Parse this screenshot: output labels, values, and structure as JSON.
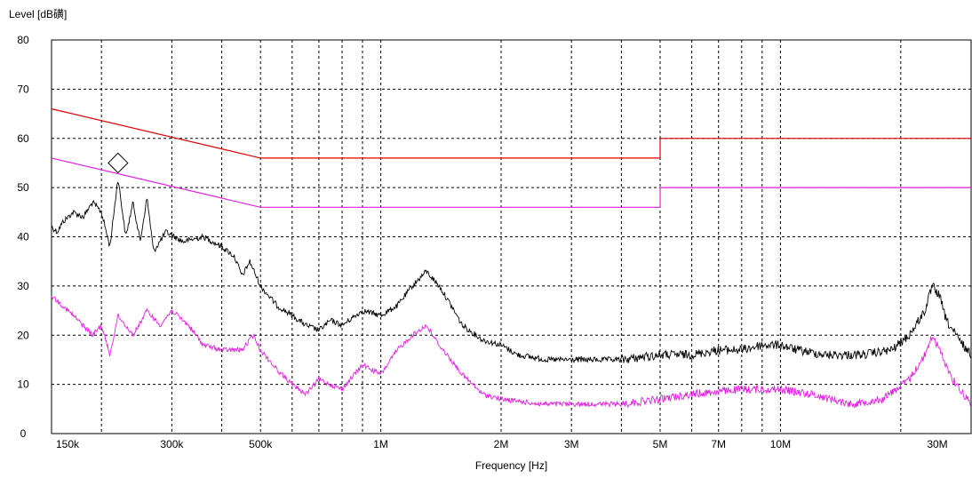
{
  "chart_data": {
    "type": "line",
    "title": "",
    "xlabel": "Frequency [Hz]",
    "ylabel": "Level [dB磺]",
    "x_scale": "log",
    "xlim": [
      150000,
      30000000
    ],
    "ylim": [
      0,
      80
    ],
    "grid": true,
    "legend": "none",
    "x_ticks": [
      {
        "value": 150000,
        "label": "150k"
      },
      {
        "value": 300000,
        "label": "300k"
      },
      {
        "value": 500000,
        "label": "500k"
      },
      {
        "value": 1000000,
        "label": "1M"
      },
      {
        "value": 2000000,
        "label": "2M"
      },
      {
        "value": 3000000,
        "label": "3M"
      },
      {
        "value": 5000000,
        "label": "5M"
      },
      {
        "value": 7000000,
        "label": "7M"
      },
      {
        "value": 10000000,
        "label": "10M"
      },
      {
        "value": 30000000,
        "label": "30M"
      }
    ],
    "x_grid_values": [
      150000,
      200000,
      300000,
      400000,
      500000,
      600000,
      700000,
      800000,
      900000,
      1000000,
      2000000,
      3000000,
      4000000,
      5000000,
      6000000,
      7000000,
      8000000,
      9000000,
      10000000,
      20000000,
      30000000
    ],
    "y_ticks": [
      0,
      10,
      20,
      30,
      40,
      50,
      60,
      70,
      80
    ],
    "series": [
      {
        "role": "limit-qp",
        "color": "#e00000",
        "points": [
          [
            150000,
            66
          ],
          [
            500000,
            56
          ],
          [
            5000000,
            56
          ],
          [
            5000000,
            60
          ],
          [
            30000000,
            60
          ]
        ]
      },
      {
        "role": "limit-avg",
        "color": "#e020e0",
        "points": [
          [
            150000,
            56
          ],
          [
            500000,
            46
          ],
          [
            5000000,
            46
          ],
          [
            5000000,
            50
          ],
          [
            30000000,
            50
          ]
        ]
      },
      {
        "role": "peak-trace",
        "color": "#000000",
        "points": [
          [
            150000,
            42
          ],
          [
            155000,
            41
          ],
          [
            160000,
            43
          ],
          [
            170000,
            45
          ],
          [
            180000,
            44
          ],
          [
            190000,
            47
          ],
          [
            200000,
            45
          ],
          [
            210000,
            38
          ],
          [
            220000,
            52
          ],
          [
            230000,
            40
          ],
          [
            240000,
            47
          ],
          [
            250000,
            39
          ],
          [
            260000,
            48
          ],
          [
            270000,
            37
          ],
          [
            290000,
            41
          ],
          [
            320000,
            39
          ],
          [
            360000,
            40
          ],
          [
            400000,
            38
          ],
          [
            430000,
            36
          ],
          [
            450000,
            32
          ],
          [
            470000,
            35
          ],
          [
            500000,
            30
          ],
          [
            550000,
            26
          ],
          [
            600000,
            24
          ],
          [
            650000,
            22
          ],
          [
            700000,
            21
          ],
          [
            750000,
            23
          ],
          [
            800000,
            22
          ],
          [
            900000,
            25
          ],
          [
            1000000,
            24
          ],
          [
            1100000,
            26
          ],
          [
            1200000,
            30
          ],
          [
            1300000,
            33
          ],
          [
            1400000,
            30
          ],
          [
            1500000,
            26
          ],
          [
            1600000,
            22
          ],
          [
            1800000,
            19
          ],
          [
            2000000,
            18
          ],
          [
            2200000,
            16
          ],
          [
            2600000,
            15
          ],
          [
            3000000,
            15
          ],
          [
            4000000,
            15
          ],
          [
            5000000,
            16
          ],
          [
            6000000,
            16
          ],
          [
            7000000,
            17
          ],
          [
            8000000,
            17
          ],
          [
            9000000,
            18
          ],
          [
            10000000,
            18
          ],
          [
            11000000,
            17
          ],
          [
            13000000,
            16
          ],
          [
            16000000,
            16
          ],
          [
            19000000,
            17
          ],
          [
            21000000,
            20
          ],
          [
            23000000,
            25
          ],
          [
            24000000,
            30
          ],
          [
            25000000,
            28
          ],
          [
            26000000,
            23
          ],
          [
            28000000,
            19
          ],
          [
            30000000,
            16
          ]
        ]
      },
      {
        "role": "avg-trace",
        "color": "#e020e0",
        "points": [
          [
            150000,
            28
          ],
          [
            160000,
            26
          ],
          [
            170000,
            24
          ],
          [
            180000,
            22
          ],
          [
            190000,
            20
          ],
          [
            200000,
            22
          ],
          [
            210000,
            16
          ],
          [
            220000,
            24
          ],
          [
            240000,
            20
          ],
          [
            260000,
            25
          ],
          [
            280000,
            22
          ],
          [
            300000,
            25
          ],
          [
            330000,
            22
          ],
          [
            360000,
            18
          ],
          [
            400000,
            17
          ],
          [
            450000,
            17
          ],
          [
            480000,
            20
          ],
          [
            500000,
            17
          ],
          [
            550000,
            13
          ],
          [
            600000,
            10
          ],
          [
            650000,
            8
          ],
          [
            700000,
            11
          ],
          [
            800000,
            9
          ],
          [
            900000,
            14
          ],
          [
            1000000,
            12
          ],
          [
            1100000,
            17
          ],
          [
            1200000,
            20
          ],
          [
            1300000,
            22
          ],
          [
            1400000,
            18
          ],
          [
            1600000,
            12
          ],
          [
            1800000,
            8
          ],
          [
            2000000,
            7
          ],
          [
            2500000,
            6
          ],
          [
            3000000,
            6
          ],
          [
            4000000,
            6
          ],
          [
            5000000,
            7
          ],
          [
            6000000,
            8
          ],
          [
            8000000,
            9
          ],
          [
            10000000,
            9
          ],
          [
            12000000,
            8
          ],
          [
            15000000,
            6
          ],
          [
            18000000,
            7
          ],
          [
            21000000,
            11
          ],
          [
            23000000,
            16
          ],
          [
            24000000,
            20
          ],
          [
            25000000,
            17
          ],
          [
            27000000,
            11
          ],
          [
            30000000,
            6
          ]
        ]
      }
    ],
    "markers": [
      {
        "shape": "diamond",
        "x": 220000,
        "y": 55
      }
    ]
  }
}
